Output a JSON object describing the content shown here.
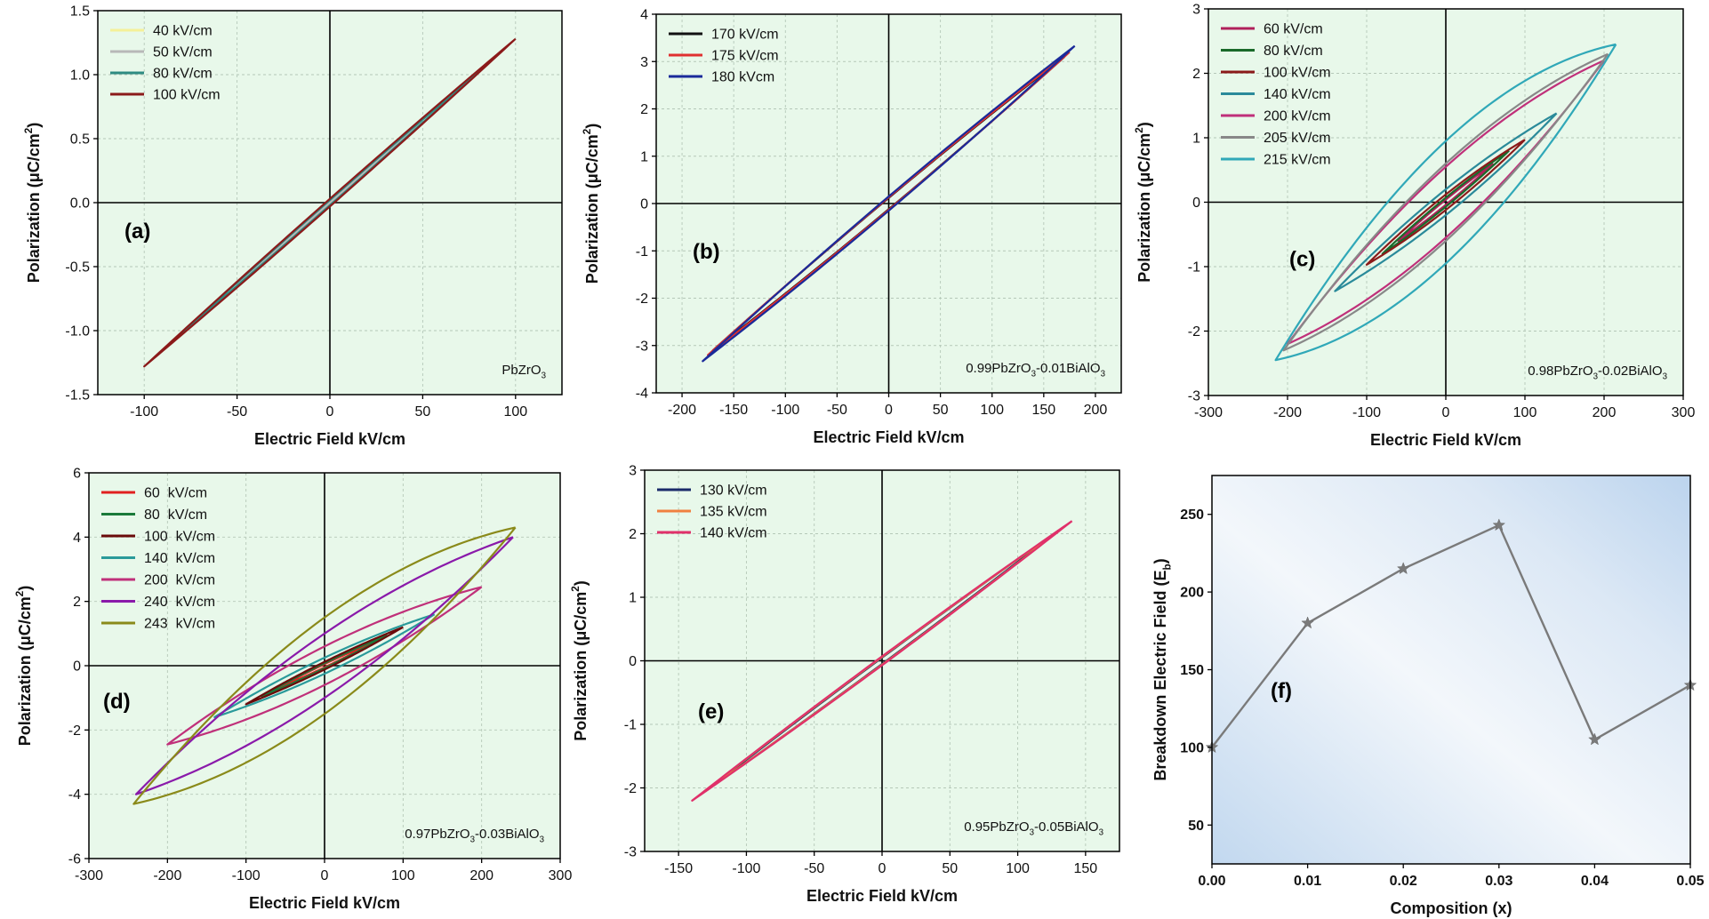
{
  "chart_data": [
    {
      "type": "line",
      "panel_label": "(a)",
      "annotation": "PbZrO3",
      "xlabel": "Electric Field kV/cm",
      "ylabel": "Polarization (μC/cm2)",
      "xlim": [
        -125,
        125
      ],
      "ylim": [
        -1.5,
        1.5
      ],
      "xticks": [
        -100,
        -50,
        0,
        50,
        100
      ],
      "yticks": [
        -1.5,
        -1.0,
        -0.5,
        0.0,
        0.5,
        1.0,
        1.5
      ],
      "ytick_format": "0.0",
      "grid": true,
      "legend_position": "top-left",
      "series": [
        {
          "name": "40 kV/cm",
          "color": "#f5f099",
          "emax": 40,
          "pmax": 0.51,
          "pr": 0.01
        },
        {
          "name": "50 kV/cm",
          "color": "#b8b8b8",
          "emax": 50,
          "pmax": 0.64,
          "pr": 0.01
        },
        {
          "name": "80 kV/cm",
          "color": "#2e8b82",
          "emax": 80,
          "pmax": 1.02,
          "pr": 0.02
        },
        {
          "name": "100 kV/cm",
          "color": "#8b1a1a",
          "emax": 100,
          "pmax": 1.28,
          "pr": 0.03
        }
      ]
    },
    {
      "type": "line",
      "panel_label": "(b)",
      "annotation": "0.99PbZrO3-0.01BiAlO3",
      "xlabel": "Electric Field kV/cm",
      "ylabel": "Polarization (μC/cm2)",
      "xlim": [
        -225,
        225
      ],
      "ylim": [
        -4,
        4
      ],
      "xticks": [
        -200,
        -150,
        -100,
        -50,
        0,
        50,
        100,
        150,
        200
      ],
      "yticks": [
        -4,
        -3,
        -2,
        -1,
        0,
        1,
        2,
        3,
        4
      ],
      "ytick_format": "0",
      "grid": true,
      "legend_position": "top-left",
      "series": [
        {
          "name": "170 kV/cm",
          "color": "#111111",
          "emax": 170,
          "pmax": 3.1,
          "pr": 0.12
        },
        {
          "name": "175 kV/cm",
          "color": "#e03030",
          "emax": 175,
          "pmax": 3.2,
          "pr": 0.13
        },
        {
          "name": "180 kVcm",
          "color": "#1a2a9a",
          "emax": 180,
          "pmax": 3.33,
          "pr": 0.15
        }
      ]
    },
    {
      "type": "line",
      "panel_label": "(c)",
      "annotation": "0.98PbZrO3-0.02BiAlO3",
      "xlabel": "Electric Field kV/cm",
      "ylabel": "Polarization (μC/cm2)",
      "xlim": [
        -300,
        300
      ],
      "ylim": [
        -3,
        3
      ],
      "xticks": [
        -300,
        -200,
        -100,
        0,
        100,
        200,
        300
      ],
      "yticks": [
        -3,
        -2,
        -1,
        0,
        1,
        2,
        3
      ],
      "ytick_format": "0",
      "grid": true,
      "legend_position": "top-left",
      "series": [
        {
          "name": "60 kV/cm",
          "color": "#b0205a",
          "emax": 60,
          "pmax": 0.6,
          "pr": 0.04
        },
        {
          "name": "80 kV/cm",
          "color": "#1a6a2a",
          "emax": 80,
          "pmax": 0.8,
          "pr": 0.07
        },
        {
          "name": "100 kV/cm",
          "color": "#8b1a1a",
          "emax": 100,
          "pmax": 0.97,
          "pr": 0.12
        },
        {
          "name": "140 kV/cm",
          "color": "#2a8a9a",
          "emax": 140,
          "pmax": 1.38,
          "pr": 0.2
        },
        {
          "name": "200 kV/cm",
          "color": "#c0307a",
          "emax": 200,
          "pmax": 2.2,
          "pr": 0.55
        },
        {
          "name": "205 kV/cm",
          "color": "#888888",
          "emax": 205,
          "pmax": 2.3,
          "pr": 0.6
        },
        {
          "name": "215 kV/cm",
          "color": "#30a8b8",
          "emax": 215,
          "pmax": 2.45,
          "pr": 0.95
        }
      ]
    },
    {
      "type": "line",
      "panel_label": "(d)",
      "annotation": "0.97PbZrO3-0.03BiAlO3",
      "xlabel": "Electric Field kV/cm",
      "ylabel": "Polarization (μC/cm2)",
      "xlim": [
        -300,
        300
      ],
      "ylim": [
        -6,
        6
      ],
      "xticks": [
        -300,
        -200,
        -100,
        0,
        100,
        200,
        300
      ],
      "yticks": [
        -6,
        -4,
        -2,
        0,
        2,
        4,
        6
      ],
      "ytick_format": "0",
      "grid": true,
      "legend_position": "top-left",
      "series": [
        {
          "name": "60  kV/cm",
          "color": "#e02020",
          "emax": 60,
          "pmax": 0.7,
          "pr": 0.05
        },
        {
          "name": "80  kV/cm",
          "color": "#1a7a3a",
          "emax": 80,
          "pmax": 0.95,
          "pr": 0.08
        },
        {
          "name": "100  kV/cm",
          "color": "#6a0a0a",
          "emax": 100,
          "pmax": 1.2,
          "pr": 0.12
        },
        {
          "name": "140  kV/cm",
          "color": "#2a9a9a",
          "emax": 140,
          "pmax": 1.6,
          "pr": 0.25
        },
        {
          "name": "200  kV/cm",
          "color": "#c0307a",
          "emax": 200,
          "pmax": 2.45,
          "pr": 0.6
        },
        {
          "name": "240  kV/cm",
          "color": "#8a1aaa",
          "emax": 240,
          "pmax": 4.0,
          "pr": 1.0
        },
        {
          "name": "243  kV/cm",
          "color": "#8a8a1a",
          "emax": 243,
          "pmax": 4.3,
          "pr": 1.5
        }
      ]
    },
    {
      "type": "line",
      "panel_label": "(e)",
      "annotation": "0.95PbZrO3-0.05BiAlO3",
      "xlabel": "Electric Field kV/cm",
      "ylabel": "Polarization (μC/cm2)",
      "xlim": [
        -175,
        175
      ],
      "ylim": [
        -3,
        3
      ],
      "xticks": [
        -150,
        -100,
        -50,
        0,
        50,
        100,
        150
      ],
      "yticks": [
        -3,
        -2,
        -1,
        0,
        1,
        2,
        3
      ],
      "ytick_format": "0",
      "grid": true,
      "legend_position": "top-left",
      "series": [
        {
          "name": "130 kV/cm",
          "color": "#1a2a6a",
          "emax": 130,
          "pmax": 2.05,
          "pr": 0.05
        },
        {
          "name": "135 kV/cm",
          "color": "#f08040",
          "emax": 135,
          "pmax": 2.12,
          "pr": 0.06
        },
        {
          "name": "140 kV/cm",
          "color": "#e0306a",
          "emax": 140,
          "pmax": 2.2,
          "pr": 0.07
        }
      ]
    },
    {
      "type": "line",
      "panel_label": "(f)",
      "xlabel": "Composition (x)",
      "ylabel": "Breakdown Electric Field (Eb)",
      "xlim": [
        0,
        0.05
      ],
      "ylim": [
        25,
        275
      ],
      "xticks": [
        0.0,
        0.01,
        0.02,
        0.03,
        0.04,
        0.05
      ],
      "yticks": [
        50,
        100,
        150,
        200,
        250
      ],
      "grid": false,
      "x": [
        0.0,
        0.01,
        0.02,
        0.03,
        0.04,
        0.05
      ],
      "series": [
        {
          "values": [
            100,
            180,
            215,
            243,
            105,
            140
          ],
          "color": "#7a7a7a"
        }
      ]
    }
  ]
}
